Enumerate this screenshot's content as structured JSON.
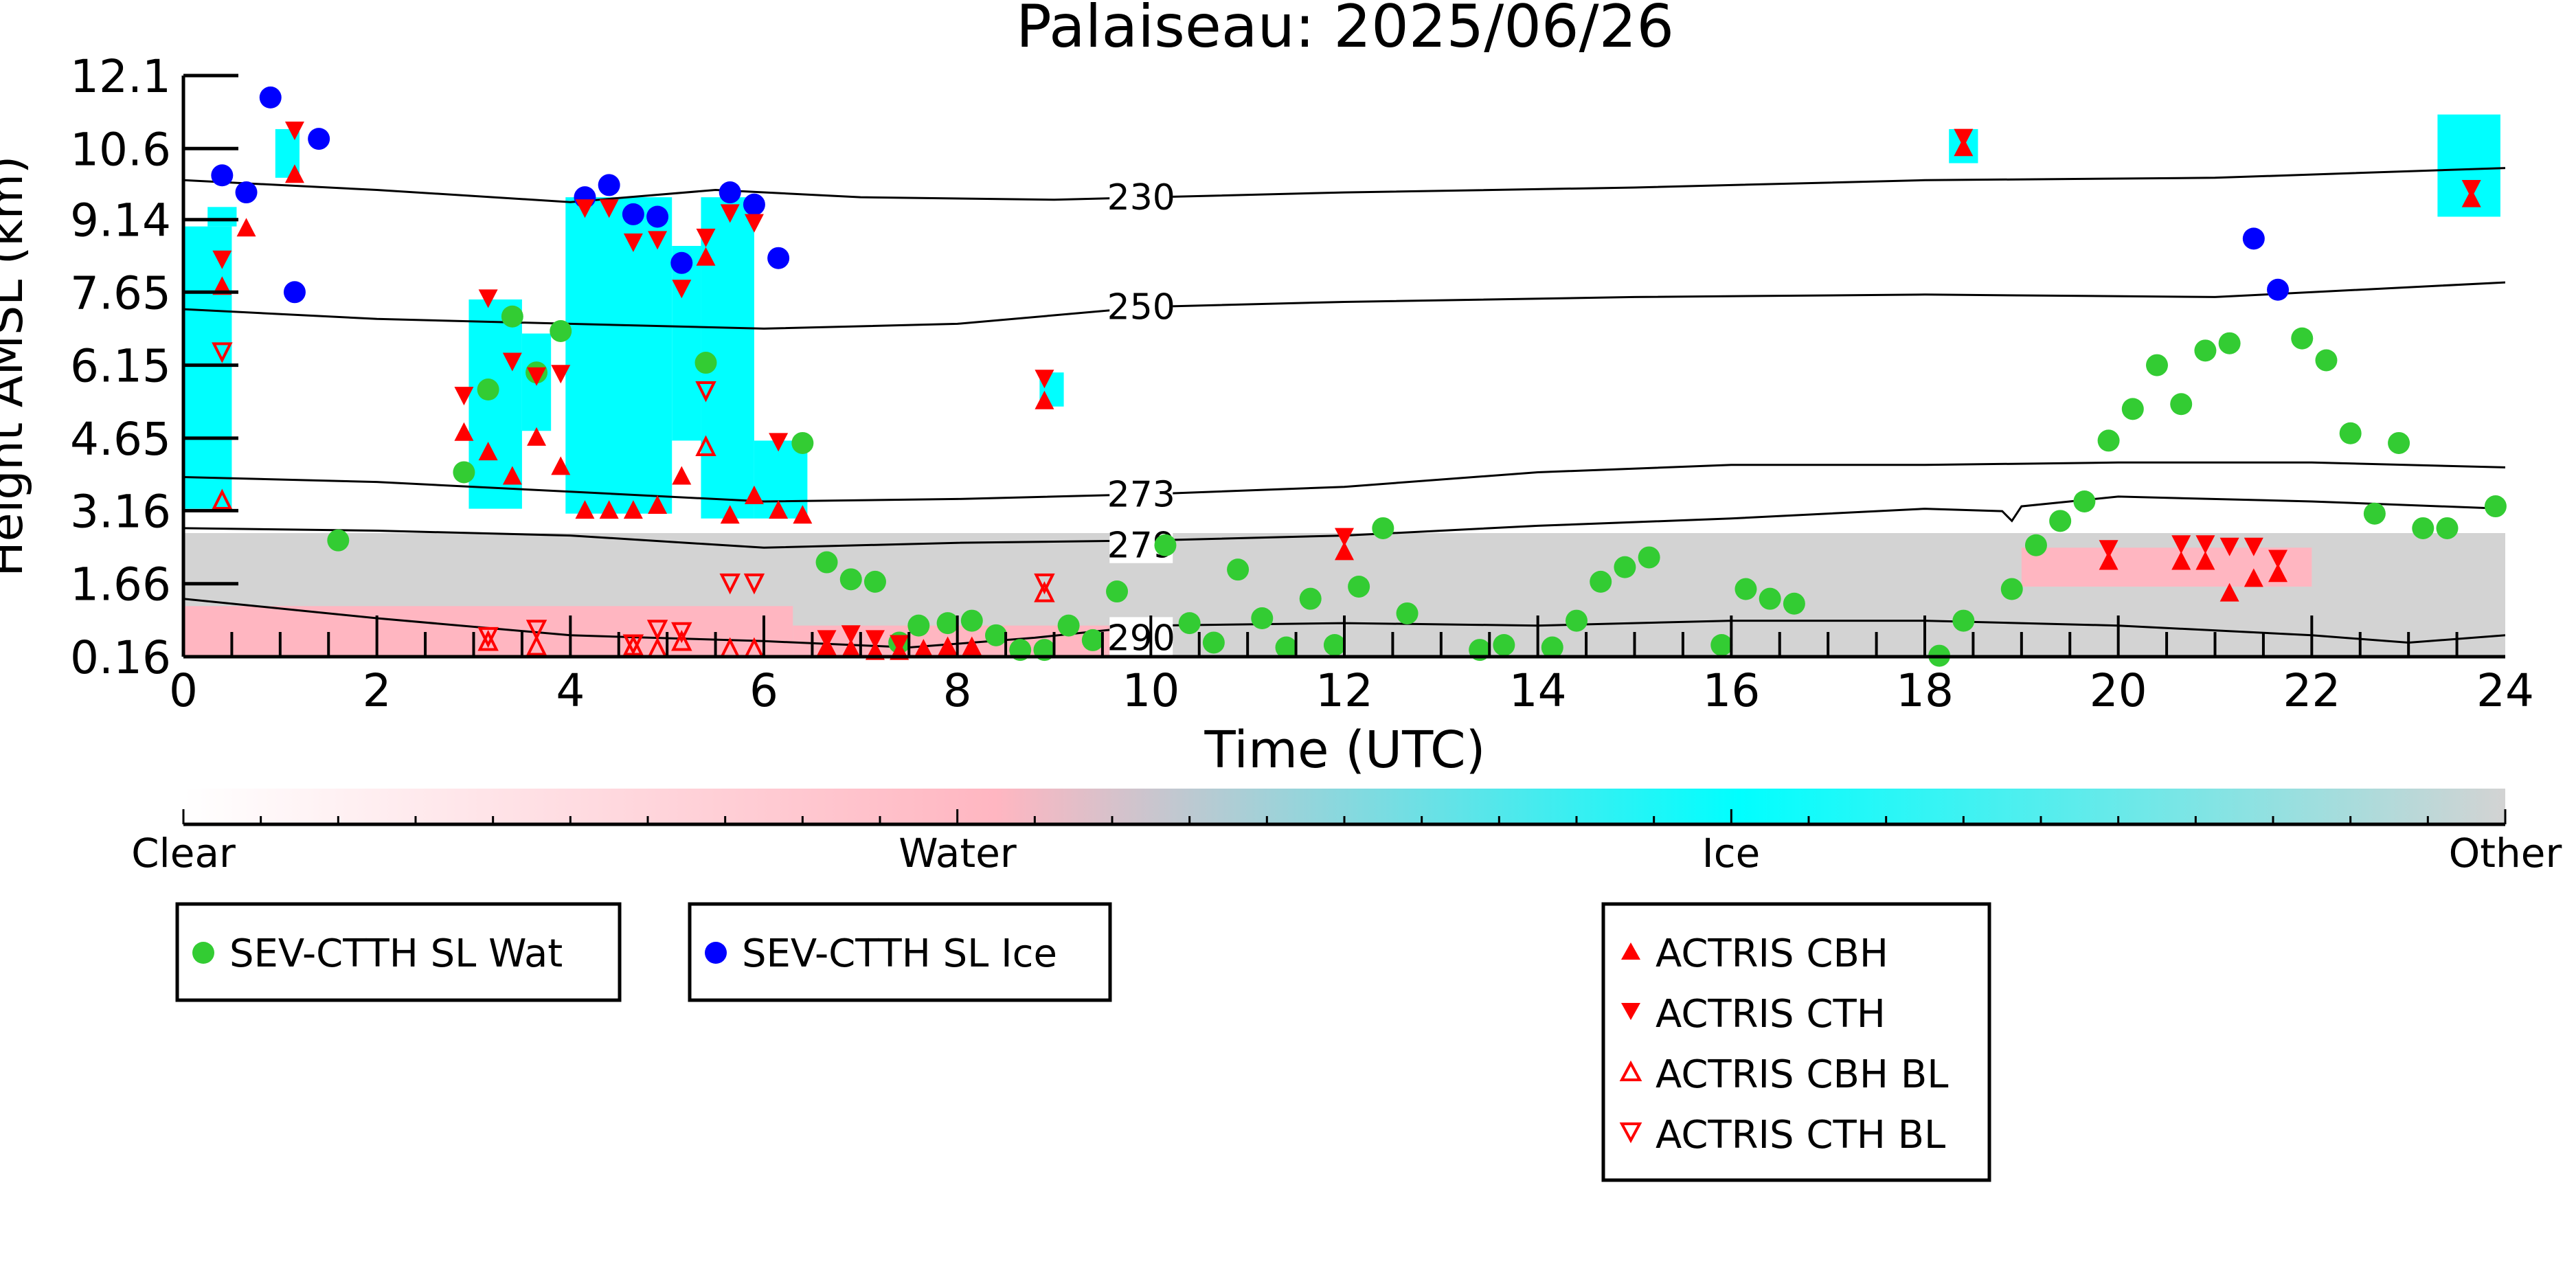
{
  "chart_data": {
    "type": "scatter",
    "title": "Palaiseau: 2025/06/26",
    "xlabel": "Time (UTC)",
    "ylabel": "Height AMSL (km)",
    "xlim": [
      0,
      24
    ],
    "ylim": [
      0.16,
      12.1
    ],
    "x_ticks": [
      0,
      2,
      4,
      6,
      8,
      10,
      12,
      14,
      16,
      18,
      20,
      22,
      24
    ],
    "y_ticks": [
      0.16,
      1.66,
      3.16,
      4.65,
      6.15,
      7.65,
      9.14,
      10.6,
      12.1
    ],
    "y_tick_labels": [
      "0.16",
      "1.66",
      "3.16",
      "4.65",
      "6.15",
      "7.65",
      "9.14",
      "10.6",
      "12.1"
    ],
    "grid": false,
    "colorbar": {
      "labels": [
        "Clear",
        "Water",
        "Ice",
        "Other"
      ],
      "colors": [
        "#ffffff",
        "#ffb6c1",
        "#00ffff",
        "#d3d3d3"
      ]
    },
    "contours": [
      {
        "label": "230",
        "label_x": 9.9,
        "label_y": 9.6,
        "x": [
          0,
          2,
          4,
          5.5,
          7,
          9,
          12,
          15,
          18,
          21,
          24
        ],
        "y": [
          9.95,
          9.75,
          9.5,
          9.75,
          9.6,
          9.55,
          9.7,
          9.8,
          9.95,
          10.0,
          10.2
        ]
      },
      {
        "label": "250",
        "label_x": 9.9,
        "label_y": 7.35,
        "x": [
          0,
          2,
          4,
          6,
          8,
          10,
          12,
          15,
          18,
          21,
          24
        ],
        "y": [
          7.3,
          7.1,
          7.0,
          6.9,
          7.0,
          7.35,
          7.45,
          7.55,
          7.6,
          7.55,
          7.85
        ]
      },
      {
        "label": "273",
        "label_x": 9.9,
        "label_y": 3.5,
        "x": [
          0,
          2,
          4,
          6,
          8,
          10,
          12,
          14,
          16,
          18,
          20,
          22,
          24
        ],
        "y": [
          3.85,
          3.75,
          3.55,
          3.35,
          3.4,
          3.5,
          3.65,
          3.95,
          4.1,
          4.1,
          4.15,
          4.15,
          4.05
        ]
      },
      {
        "label": "279",
        "label_x": 9.9,
        "label_y": 2.45,
        "x": [
          0,
          2,
          4,
          6,
          8,
          10,
          12,
          14,
          16,
          18,
          18.8,
          18.9,
          19,
          20,
          22,
          24
        ],
        "y": [
          2.8,
          2.75,
          2.65,
          2.4,
          2.5,
          2.55,
          2.65,
          2.85,
          3.0,
          3.2,
          3.15,
          2.95,
          3.25,
          3.45,
          3.35,
          3.2
        ]
      },
      {
        "label": "290",
        "label_x": 9.9,
        "label_y": 0.55,
        "x": [
          0,
          2,
          4,
          6,
          7.5,
          8.8,
          10,
          12,
          14,
          16,
          18,
          20,
          22,
          23,
          24
        ],
        "y": [
          1.35,
          0.95,
          0.6,
          0.48,
          0.35,
          0.55,
          0.8,
          0.85,
          0.8,
          0.9,
          0.9,
          0.8,
          0.6,
          0.45,
          0.6
        ]
      }
    ],
    "series": [
      {
        "name": "SEV-CTTH SL Wat",
        "marker": "circle",
        "color": "#33cc33",
        "x": [
          1.6,
          2.9,
          3.15,
          3.4,
          3.65,
          3.9,
          5.4,
          6.4,
          6.65,
          6.9,
          7.15,
          7.4,
          7.6,
          7.9,
          8.15,
          8.4,
          8.65,
          8.9,
          9.15,
          9.4,
          9.65,
          10.15,
          10.4,
          10.65,
          10.9,
          11.15,
          11.4,
          11.65,
          11.9,
          12.15,
          12.4,
          12.65,
          13.4,
          13.65,
          14.15,
          14.4,
          14.65,
          14.9,
          15.15,
          15.9,
          16.15,
          16.4,
          16.65,
          18.15,
          18.4,
          18.9,
          19.15,
          19.4,
          19.65,
          19.9,
          20.15,
          20.4,
          20.65,
          20.9,
          21.15,
          21.9,
          22.15,
          22.4,
          22.65,
          22.9,
          23.15,
          23.4,
          23.9
        ],
        "y": [
          2.55,
          3.95,
          5.65,
          7.15,
          6.0,
          6.85,
          6.2,
          4.55,
          2.1,
          1.75,
          1.7,
          0.45,
          0.8,
          0.85,
          0.9,
          0.6,
          0.3,
          0.3,
          0.8,
          0.5,
          1.5,
          2.45,
          0.85,
          0.45,
          1.95,
          0.95,
          0.35,
          1.35,
          0.4,
          1.6,
          2.8,
          1.05,
          0.3,
          0.4,
          0.35,
          0.9,
          1.7,
          2.0,
          2.2,
          0.4,
          1.55,
          1.35,
          1.25,
          0.18,
          0.9,
          1.55,
          2.45,
          2.95,
          3.35,
          4.6,
          5.25,
          6.15,
          5.35,
          6.45,
          6.6,
          6.7,
          6.25,
          4.75,
          3.1,
          4.55,
          2.8,
          2.8,
          3.25
        ]
      },
      {
        "name": "SEV-CTTH SL Ice",
        "marker": "circle",
        "color": "#0000ff",
        "x": [
          0.4,
          0.65,
          0.9,
          1.15,
          1.4,
          4.15,
          4.4,
          4.65,
          4.9,
          5.15,
          5.65,
          5.9,
          6.15,
          21.4,
          21.65
        ],
        "y": [
          10.05,
          9.7,
          11.65,
          7.65,
          10.8,
          9.6,
          9.85,
          9.25,
          9.2,
          8.25,
          9.7,
          9.45,
          8.35,
          8.75,
          7.7
        ]
      },
      {
        "name": "ACTRIS CBH",
        "marker": "triangle-up",
        "color": "#ff0000",
        "x": [
          0.4,
          0.65,
          1.15,
          2.9,
          3.15,
          3.4,
          3.65,
          3.9,
          4.15,
          4.4,
          4.65,
          4.9,
          5.15,
          5.4,
          5.65,
          5.9,
          6.15,
          6.4,
          6.65,
          6.9,
          7.15,
          7.4,
          7.65,
          7.9,
          8.15,
          8.9,
          12.0,
          18.4,
          19.9,
          20.65,
          20.9,
          21.15,
          21.4,
          21.65,
          23.65
        ],
        "y": [
          7.75,
          8.95,
          10.05,
          4.75,
          4.35,
          3.85,
          4.65,
          4.05,
          3.15,
          3.15,
          3.15,
          3.25,
          3.85,
          8.35,
          3.05,
          3.45,
          3.15,
          3.05,
          0.35,
          0.3,
          0.25,
          0.25,
          0.3,
          0.35,
          0.35,
          5.4,
          2.3,
          10.6,
          2.1,
          2.1,
          2.1,
          1.45,
          1.75,
          1.85,
          9.55
        ]
      },
      {
        "name": "ACTRIS CTH",
        "marker": "triangle-down",
        "color": "#ff0000",
        "x": [
          0.4,
          1.15,
          2.9,
          3.15,
          3.4,
          3.65,
          3.9,
          4.15,
          4.4,
          4.65,
          4.9,
          5.15,
          5.4,
          5.65,
          5.9,
          6.15,
          6.65,
          6.9,
          7.15,
          7.4,
          8.9,
          12.0,
          18.4,
          19.9,
          20.65,
          20.9,
          21.15,
          21.4,
          21.65,
          23.65
        ],
        "y": [
          8.35,
          11.0,
          5.55,
          7.55,
          6.25,
          5.95,
          6.0,
          9.4,
          9.4,
          8.7,
          8.75,
          7.75,
          8.8,
          9.3,
          9.1,
          4.6,
          0.55,
          0.65,
          0.55,
          0.45,
          5.9,
          2.65,
          10.85,
          2.4,
          2.5,
          2.5,
          2.45,
          2.45,
          2.2,
          9.8
        ]
      },
      {
        "name": "ACTRIS CBH BL",
        "marker": "triangle-up-open",
        "color": "#ff0000",
        "x": [
          0.4,
          3.15,
          3.65,
          4.65,
          4.9,
          5.15,
          5.4,
          5.65,
          5.9,
          8.9
        ],
        "y": [
          3.35,
          0.45,
          0.35,
          0.35,
          0.3,
          0.45,
          4.45,
          0.3,
          0.3,
          1.45
        ]
      },
      {
        "name": "ACTRIS CTH BL",
        "marker": "triangle-down-open",
        "color": "#ff0000",
        "x": [
          0.4,
          3.15,
          3.65,
          4.65,
          4.9,
          5.15,
          5.4,
          5.65,
          5.9,
          8.9
        ],
        "y": [
          6.45,
          0.6,
          0.75,
          0.45,
          0.75,
          0.7,
          5.65,
          1.7,
          1.7,
          1.7
        ]
      }
    ],
    "legend_groups": [
      {
        "placement": "bottom-left",
        "entries": [
          "SEV-CTTH SL Wat"
        ]
      },
      {
        "placement": "bottom-center-left",
        "entries": [
          "SEV-CTTH SL Ice"
        ]
      },
      {
        "placement": "bottom-right",
        "entries": [
          "ACTRIS CBH",
          "ACTRIS CTH",
          "ACTRIS CBH BL",
          "ACTRIS CTH BL"
        ]
      }
    ]
  }
}
